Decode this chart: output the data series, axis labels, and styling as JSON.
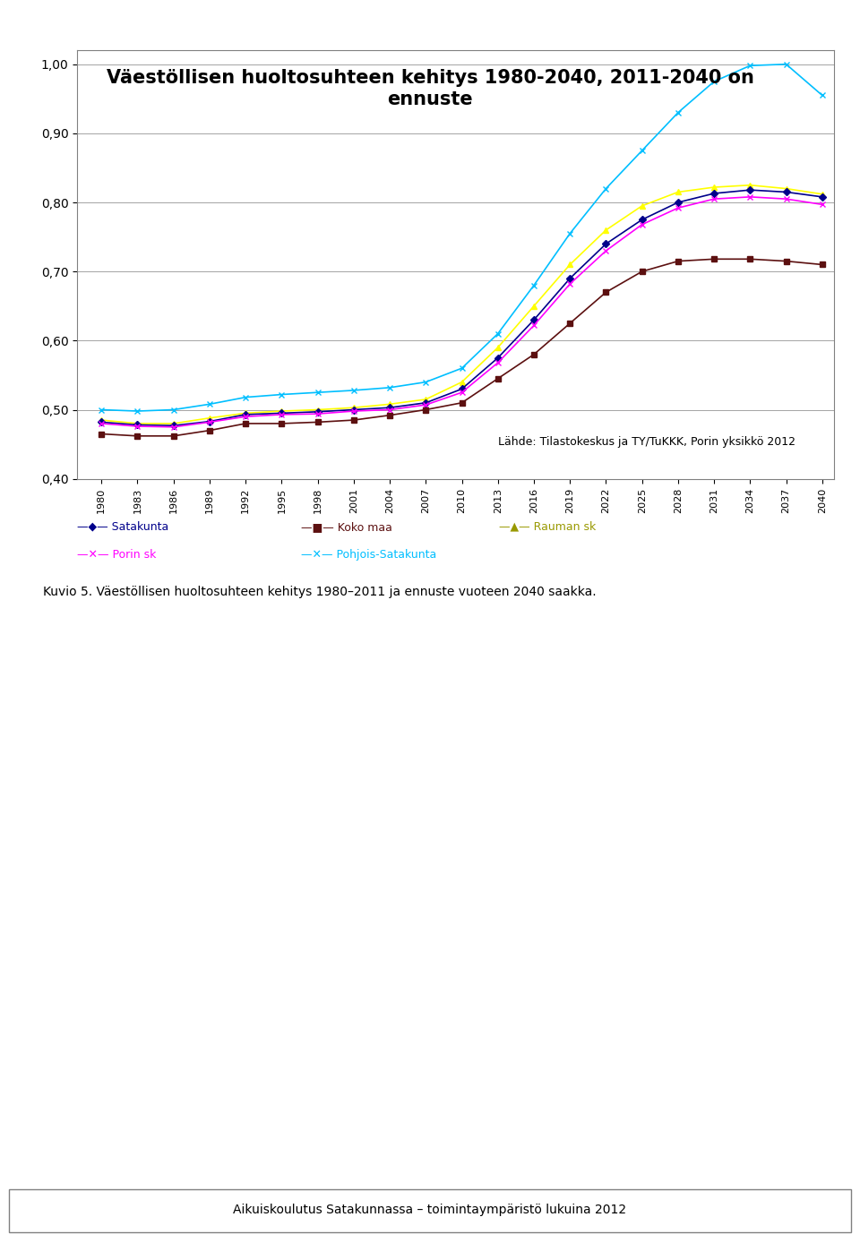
{
  "title": "Väestöllisen huoltosuhteen kehitys 1980-2040, 2011-2040 on\nennuste",
  "title_fontsize": 15,
  "xlabel": "",
  "ylabel": "",
  "ylim": [
    0.4,
    1.02
  ],
  "yticks": [
    0.4,
    0.5,
    0.6,
    0.7,
    0.8,
    0.9,
    1.0
  ],
  "ytick_labels": [
    "0,40",
    "0,50",
    "0,60",
    "0,70",
    "0,80",
    "0,90",
    "1,00"
  ],
  "years": [
    1980,
    1983,
    1986,
    1989,
    1992,
    1995,
    1998,
    2001,
    2004,
    2007,
    2010,
    2013,
    2016,
    2019,
    2022,
    2025,
    2028,
    2031,
    2034,
    2037,
    2040
  ],
  "satakunta": [
    0.482,
    0.478,
    0.477,
    0.483,
    0.493,
    0.495,
    0.497,
    0.5,
    0.503,
    0.51,
    0.53,
    0.575,
    0.63,
    0.69,
    0.74,
    0.775,
    0.8,
    0.813,
    0.818,
    0.815,
    0.808
  ],
  "koko_maa": [
    0.465,
    0.462,
    0.462,
    0.47,
    0.48,
    0.48,
    0.482,
    0.485,
    0.492,
    0.5,
    0.51,
    0.545,
    0.58,
    0.625,
    0.67,
    0.7,
    0.715,
    0.718,
    0.718,
    0.715,
    0.71
  ],
  "rauman_sk": [
    0.485,
    0.48,
    0.48,
    0.488,
    0.495,
    0.498,
    0.5,
    0.503,
    0.508,
    0.515,
    0.54,
    0.59,
    0.65,
    0.71,
    0.76,
    0.795,
    0.815,
    0.822,
    0.825,
    0.82,
    0.812
  ],
  "porin_sk": [
    0.48,
    0.476,
    0.475,
    0.482,
    0.49,
    0.493,
    0.494,
    0.498,
    0.5,
    0.507,
    0.525,
    0.568,
    0.622,
    0.682,
    0.73,
    0.768,
    0.792,
    0.805,
    0.808,
    0.805,
    0.797
  ],
  "pohjois_satakunta": [
    0.5,
    0.498,
    0.5,
    0.508,
    0.518,
    0.522,
    0.525,
    0.528,
    0.532,
    0.54,
    0.56,
    0.61,
    0.68,
    0.755,
    0.82,
    0.875,
    0.93,
    0.975,
    0.998,
    1.0,
    0.955
  ],
  "satakunta_color": "#00008B",
  "koko_maa_color": "#5C1010",
  "rauman_sk_color": "#FFFF00",
  "porin_sk_color": "#FF00FF",
  "pohjois_satakunta_color": "#00BFFF",
  "chart_bg": "#FFFFFF",
  "outer_bg": "#AAAADD",
  "annotation": "Lähde: Tilastokeskus ja TY/TuKKK, Porin yksikkö 2012",
  "caption": "Kuvio 5. Väestöllisen huoltosuhteen kehitys 1980–2011 ja ennuste vuoteen 2040 saakka.",
  "footer": "Aikuiskoulutus Satakunnassa – toimintaympäristö lukuina 2012"
}
